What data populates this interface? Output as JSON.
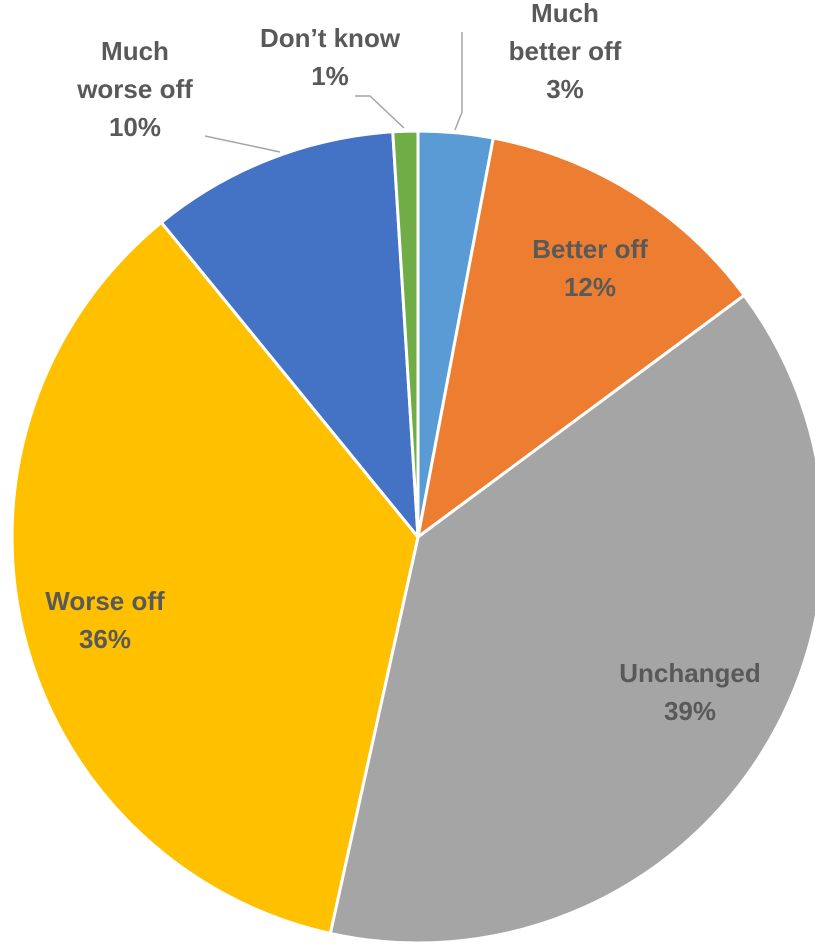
{
  "chart_data": {
    "type": "pie",
    "slices": [
      {
        "name": "Much better off",
        "value": 3,
        "label_lines": [
          "Much",
          "better off",
          "3%"
        ],
        "color": "#5B9BD5"
      },
      {
        "name": "Better off",
        "value": 12,
        "label_lines": [
          "Better off",
          "12%"
        ],
        "color": "#ED7D31"
      },
      {
        "name": "Unchanged",
        "value": 39,
        "label_lines": [
          "Unchanged",
          "39%"
        ],
        "color": "#A5A5A5"
      },
      {
        "name": "Worse off",
        "value": 36,
        "label_lines": [
          "Worse off",
          "36%"
        ],
        "color": "#FFC000"
      },
      {
        "name": "Much worse off",
        "value": 10,
        "label_lines": [
          "Much",
          "worse off",
          "10%"
        ],
        "color": "#4472C4"
      },
      {
        "name": "Don’t know",
        "value": 1,
        "label_lines": [
          "Don’t know",
          "1%"
        ],
        "color": "#70AD47"
      }
    ],
    "start_angle": "12 o'clock",
    "direction": "clockwise",
    "legend": "none",
    "label_color": "#595959",
    "slice_border_color": "#FFFFFF"
  }
}
